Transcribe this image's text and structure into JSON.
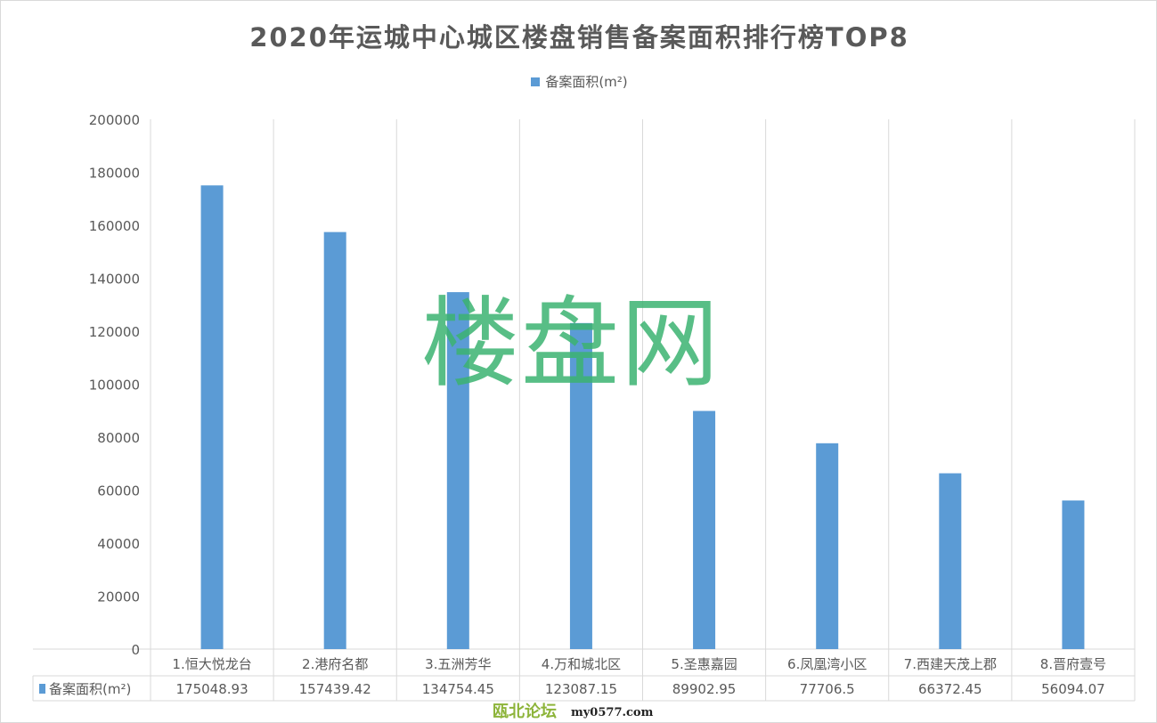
{
  "chart_data": {
    "type": "bar",
    "title": "2020年运城中心城区楼盘销售备案面积排行榜TOP8",
    "categories": [
      "1.恒大悦龙台",
      "2.港府名都",
      "3.五洲芳华",
      "4.万和城北区",
      "5.圣惠嘉园",
      "6.凤凰湾小区",
      "7.西建天茂上郡",
      "8.晋府壹号"
    ],
    "series": [
      {
        "name": "备案面积(m²)",
        "values": [
          175048.93,
          157439.42,
          134754.45,
          123087.15,
          89902.95,
          77706.5,
          66372.45,
          56094.07
        ],
        "color": "#5b9bd5"
      }
    ],
    "value_labels": [
      "175048.93",
      "157439.42",
      "134754.45",
      "123087.15",
      "89902.95",
      "77706.5",
      "66372.45",
      "56094.07"
    ],
    "ylim": [
      0,
      200000
    ],
    "yticks": [
      "0",
      "20000",
      "40000",
      "60000",
      "80000",
      "100000",
      "120000",
      "140000",
      "160000",
      "180000",
      "200000"
    ],
    "grid": "vertical category separators",
    "legend": "top",
    "data_table": true
  },
  "watermarks": {
    "main": "楼盘网",
    "forum": "瓯北论坛",
    "site": "my0577.com"
  }
}
